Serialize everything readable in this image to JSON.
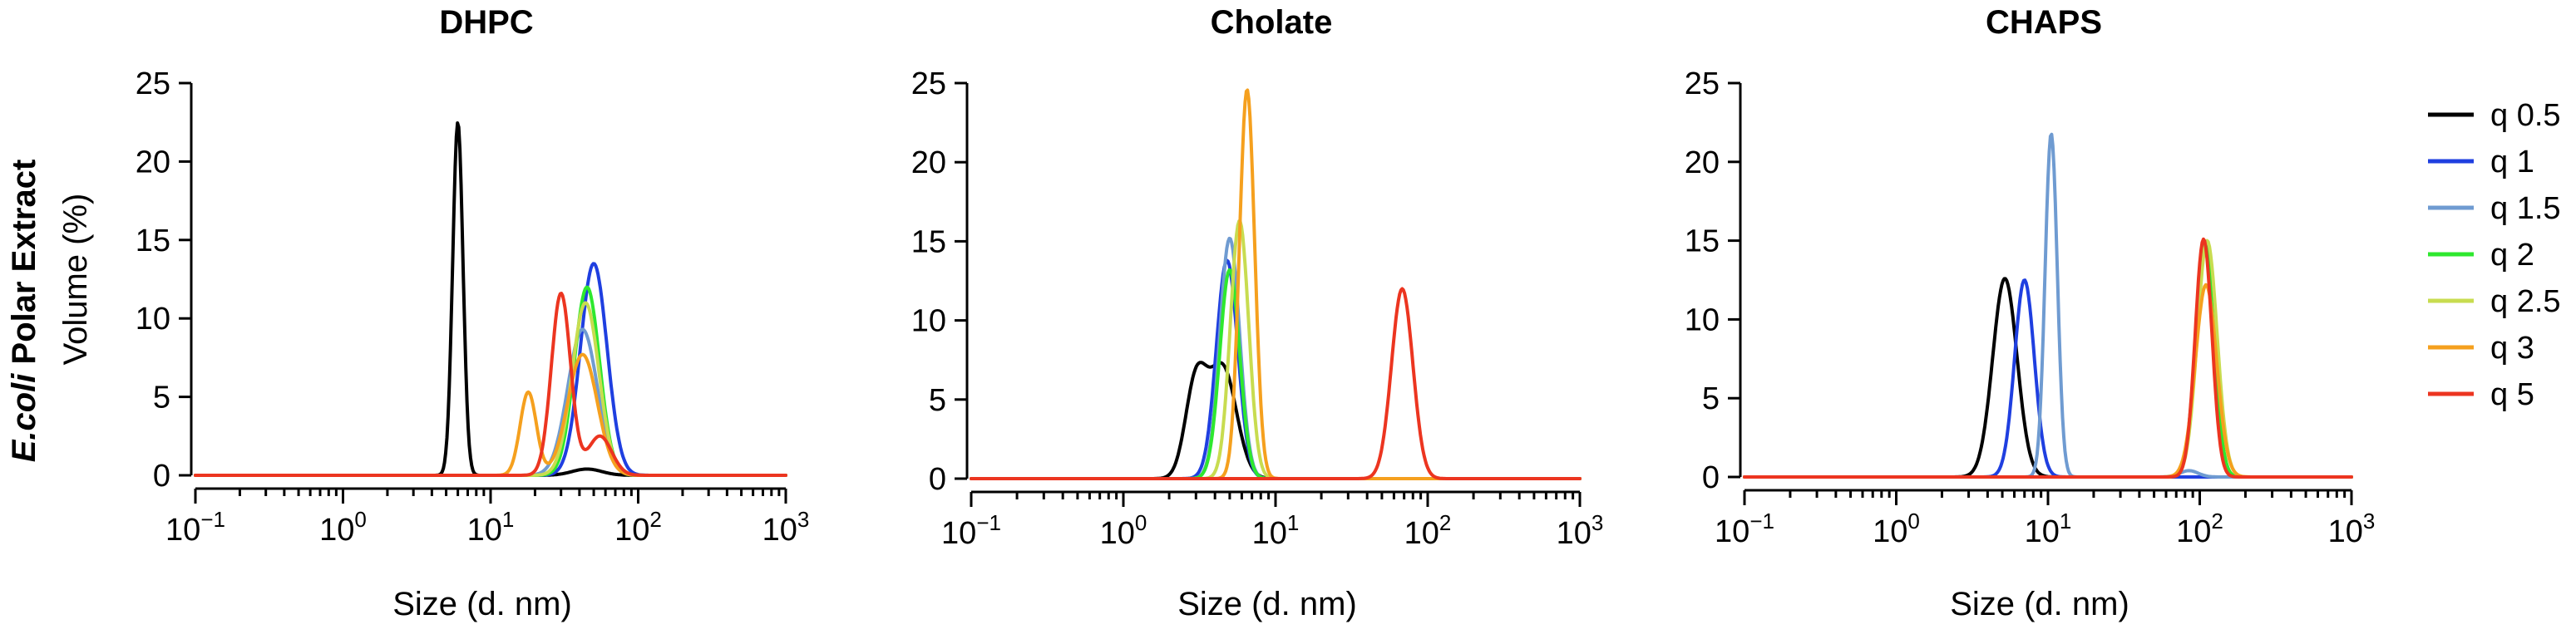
{
  "figure": {
    "row_label_italic": "E.coli",
    "row_label_rest": "Polar Extract"
  },
  "legend": [
    {
      "label": "q 0.5",
      "color": "#000000"
    },
    {
      "label": "q 1",
      "color": "#1f3fe0"
    },
    {
      "label": "q 1.5",
      "color": "#6f9bd1"
    },
    {
      "label": "q 2",
      "color": "#2ee82e"
    },
    {
      "label": "q 2.5",
      "color": "#c8dc50"
    },
    {
      "label": "q 3",
      "color": "#f5a01e"
    },
    {
      "label": "q 5",
      "color": "#ec3520"
    }
  ],
  "chart_data": [
    {
      "type": "line",
      "title": "DHPC",
      "xlabel": "Size (d. nm)",
      "ylabel": "Volume (%)",
      "xscale": "log",
      "xlim": [
        0.1,
        1000
      ],
      "ylim": [
        0,
        25
      ],
      "xticks": [
        {
          "base": "10",
          "exp": "−1"
        },
        {
          "base": "10",
          "exp": "0"
        },
        {
          "base": "10",
          "exp": "1"
        },
        {
          "base": "10",
          "exp": "2"
        },
        {
          "base": "10",
          "exp": "3"
        }
      ],
      "yticks": [
        0,
        5,
        10,
        15,
        20,
        25
      ],
      "series": [
        {
          "name": "q 0.5",
          "peaks": [
            {
              "center": 6.0,
              "height": 22.5,
              "width": 0.035
            },
            {
              "center": 45,
              "height": 0.4,
              "width": 0.1
            }
          ]
        },
        {
          "name": "q 1",
          "peaks": [
            {
              "center": 50,
              "height": 13.5,
              "width": 0.09
            }
          ]
        },
        {
          "name": "q 1.5",
          "peaks": [
            {
              "center": 42,
              "height": 9.3,
              "width": 0.1
            }
          ]
        },
        {
          "name": "q 2",
          "peaks": [
            {
              "center": 45,
              "height": 12.0,
              "width": 0.085
            }
          ]
        },
        {
          "name": "q 2.5",
          "peaks": [
            {
              "center": 44,
              "height": 11.0,
              "width": 0.09
            }
          ]
        },
        {
          "name": "q 3",
          "peaks": [
            {
              "center": 18,
              "height": 5.3,
              "width": 0.055
            },
            {
              "center": 42,
              "height": 7.7,
              "width": 0.1
            }
          ]
        },
        {
          "name": "q 5",
          "peaks": [
            {
              "center": 30,
              "height": 11.6,
              "width": 0.065
            },
            {
              "center": 55,
              "height": 2.5,
              "width": 0.08
            }
          ]
        }
      ]
    },
    {
      "type": "line",
      "title": "Cholate",
      "xlabel": "Size (d. nm)",
      "ylabel": "",
      "xscale": "log",
      "xlim": [
        0.1,
        1000
      ],
      "ylim": [
        0,
        25
      ],
      "xticks": [
        {
          "base": "10",
          "exp": "−1"
        },
        {
          "base": "10",
          "exp": "0"
        },
        {
          "base": "10",
          "exp": "1"
        },
        {
          "base": "10",
          "exp": "2"
        },
        {
          "base": "10",
          "exp": "3"
        }
      ],
      "yticks": [
        0,
        5,
        10,
        15,
        20,
        25
      ],
      "series": [
        {
          "name": "q 0.5",
          "peaks": [
            {
              "center": 3.0,
              "height": 6.0,
              "width": 0.07
            },
            {
              "center": 4.5,
              "height": 7.0,
              "width": 0.09
            }
          ]
        },
        {
          "name": "q 1",
          "peaks": [
            {
              "center": 4.8,
              "height": 13.8,
              "width": 0.07
            }
          ]
        },
        {
          "name": "q 1.5",
          "peaks": [
            {
              "center": 5.0,
              "height": 15.2,
              "width": 0.065
            }
          ]
        },
        {
          "name": "q 2",
          "peaks": [
            {
              "center": 5.0,
              "height": 13.2,
              "width": 0.065
            }
          ]
        },
        {
          "name": "q 2.5",
          "peaks": [
            {
              "center": 5.8,
              "height": 16.3,
              "width": 0.06
            }
          ]
        },
        {
          "name": "q 3",
          "peaks": [
            {
              "center": 6.5,
              "height": 24.6,
              "width": 0.05
            }
          ]
        },
        {
          "name": "q 5",
          "peaks": [
            {
              "center": 68,
              "height": 12.0,
              "width": 0.07
            }
          ]
        }
      ]
    },
    {
      "type": "line",
      "title": "CHAPS",
      "xlabel": "Size (d. nm)",
      "ylabel": "",
      "xscale": "log",
      "xlim": [
        0.1,
        1000
      ],
      "ylim": [
        0,
        25
      ],
      "xticks": [
        {
          "base": "10",
          "exp": "−1"
        },
        {
          "base": "10",
          "exp": "0"
        },
        {
          "base": "10",
          "exp": "1"
        },
        {
          "base": "10",
          "exp": "2"
        },
        {
          "base": "10",
          "exp": "3"
        }
      ],
      "yticks": [
        0,
        5,
        10,
        15,
        20,
        25
      ],
      "series": [
        {
          "name": "q 0.5",
          "peaks": [
            {
              "center": 5.2,
              "height": 12.6,
              "width": 0.08
            }
          ]
        },
        {
          "name": "q 1",
          "peaks": [
            {
              "center": 7.0,
              "height": 12.5,
              "width": 0.065
            }
          ]
        },
        {
          "name": "q 1.5",
          "peaks": [
            {
              "center": 10.5,
              "height": 21.8,
              "width": 0.04
            },
            {
              "center": 85,
              "height": 0.4,
              "width": 0.06
            }
          ]
        },
        {
          "name": "q 2",
          "peaks": [
            {
              "center": 108,
              "height": 14.8,
              "width": 0.06
            }
          ]
        },
        {
          "name": "q 2.5",
          "peaks": [
            {
              "center": 112,
              "height": 15.0,
              "width": 0.065
            }
          ]
        },
        {
          "name": "q 3",
          "peaks": [
            {
              "center": 110,
              "height": 12.2,
              "width": 0.07
            }
          ]
        },
        {
          "name": "q 5",
          "peaks": [
            {
              "center": 106,
              "height": 15.1,
              "width": 0.055
            }
          ]
        }
      ]
    }
  ]
}
